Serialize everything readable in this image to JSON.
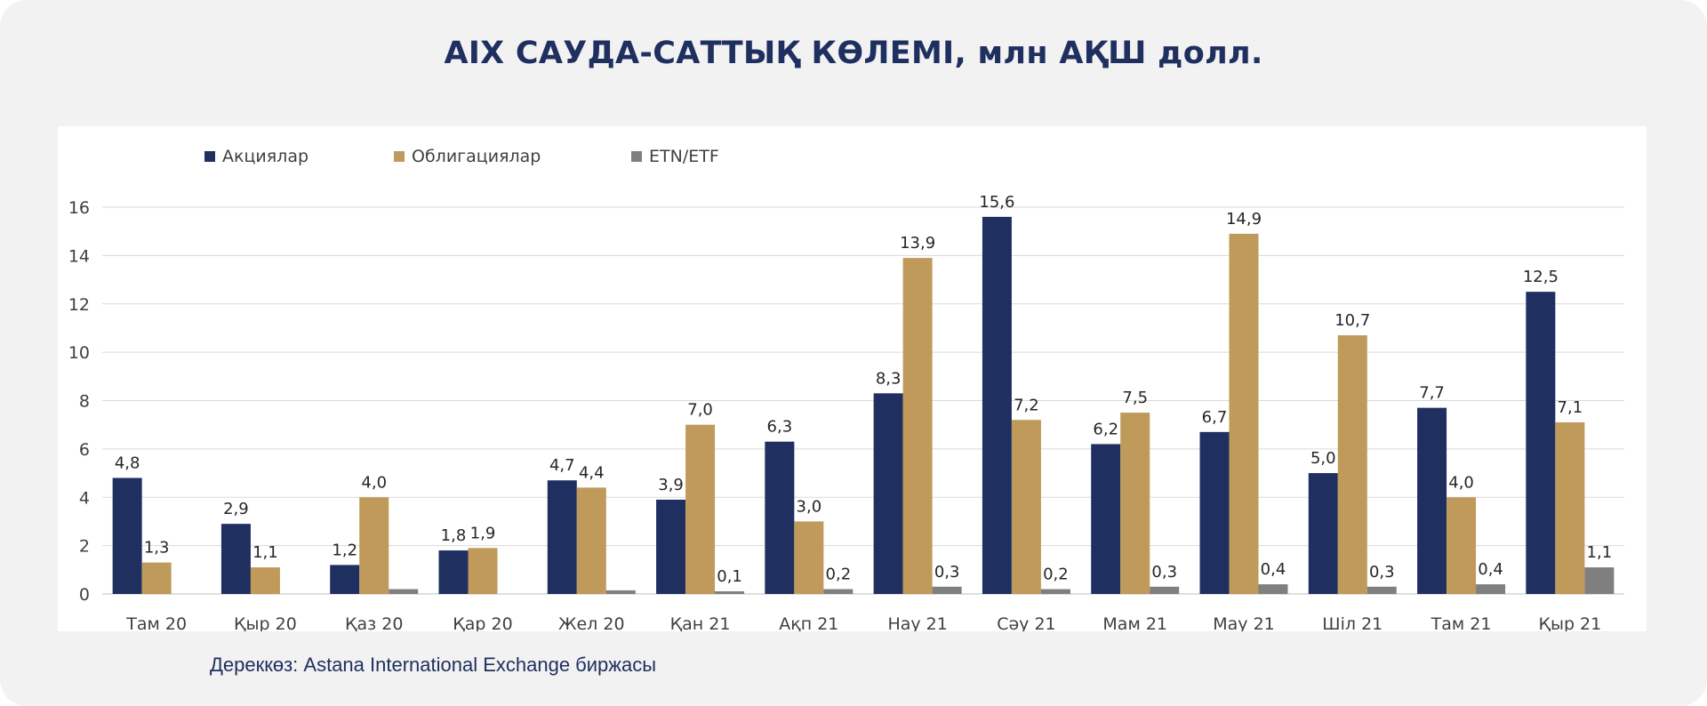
{
  "title": "AIX САУДА-САТТЫҚ КӨЛЕМІ, млн АҚШ долл.",
  "source": "Дереккөз: Astana International Exchange биржасы",
  "chart_data": {
    "type": "bar",
    "categories": [
      "Там 20",
      "Қыр 20",
      "Қаз 20",
      "Қар 20",
      "Жел 20",
      "Қан 21",
      "Ақп 21",
      "Нау 21",
      "Сәу 21",
      "Мам 21",
      "Мау 21",
      "Шіл 21",
      "Там 21",
      "Қыр 21"
    ],
    "series": [
      {
        "name": "Акциялар",
        "color": "#1f3060",
        "values": [
          4.8,
          2.9,
          1.2,
          1.8,
          4.7,
          3.9,
          6.3,
          8.3,
          15.6,
          6.2,
          6.7,
          5.0,
          7.7,
          12.5
        ],
        "labels": [
          "4,8",
          "2,9",
          "1,2",
          "1,8",
          "4,7",
          "3,9",
          "6,3",
          "8,3",
          "15,6",
          "6,2",
          "6,7",
          "5,0",
          "7,7",
          "12,5"
        ]
      },
      {
        "name": "Облигациялар",
        "color": "#bf9a5a",
        "values": [
          1.3,
          1.1,
          4.0,
          1.9,
          4.4,
          7.0,
          3.0,
          13.9,
          7.2,
          7.5,
          14.9,
          10.7,
          4.0,
          7.1
        ],
        "labels": [
          "1,3",
          "1,1",
          "4,0",
          "1,9",
          "4,4",
          "7,0",
          "3,0",
          "13,9",
          "7,2",
          "7,5",
          "14,9",
          "10,7",
          "4,0",
          "7,1"
        ]
      },
      {
        "name": "ETN/ETF",
        "color": "#7f7f7f",
        "values": [
          0.0,
          0.0,
          0.2,
          0.0,
          0.15,
          0.1,
          0.2,
          0.3,
          0.2,
          0.3,
          0.4,
          0.3,
          0.4,
          1.1
        ],
        "labels": [
          "",
          "",
          "",
          "",
          "",
          "0,1",
          "0,2",
          "0,3",
          "0,2",
          "0,3",
          "0,4",
          "0,3",
          "0,4",
          "1,1"
        ]
      }
    ],
    "ylim": [
      0,
      16
    ],
    "yticks": [
      0,
      2,
      4,
      6,
      8,
      10,
      12,
      14,
      16
    ],
    "grid": true,
    "legend_position": "top-left",
    "xlabel": "",
    "ylabel": ""
  }
}
